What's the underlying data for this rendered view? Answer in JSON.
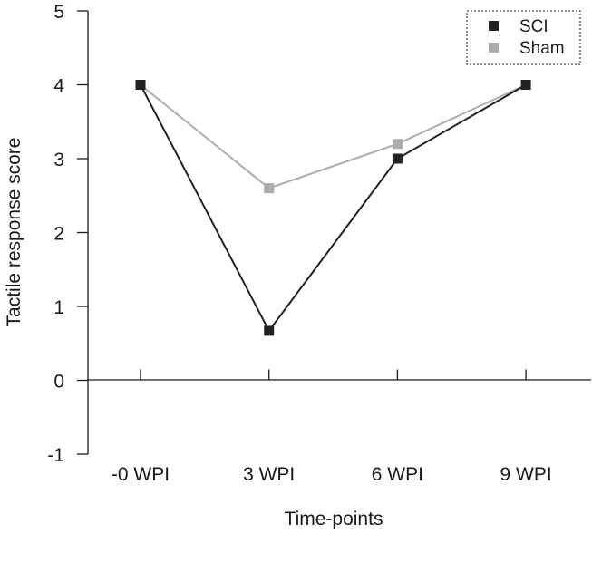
{
  "chart_data": {
    "type": "line",
    "title": "",
    "xlabel": "Time-points",
    "ylabel": "Tactile response score",
    "categories": [
      "-0 WPI",
      "3 WPI",
      "6 WPI",
      "9 WPI"
    ],
    "ylim": [
      -1,
      5
    ],
    "yticks": [
      -1,
      0,
      1,
      2,
      3,
      4,
      5
    ],
    "ytick_labels": [
      "-1",
      "0",
      "1",
      "2",
      "3",
      "4",
      "5"
    ],
    "grid": false,
    "legend_position": "top-right",
    "series": [
      {
        "name": "SCI",
        "color": "#222222",
        "marker": "square",
        "values": [
          4.0,
          0.67,
          3.0,
          4.0
        ]
      },
      {
        "name": "Sham",
        "color": "#a9adb2",
        "marker": "square",
        "values": [
          4.0,
          2.6,
          3.2,
          4.0
        ]
      }
    ]
  }
}
